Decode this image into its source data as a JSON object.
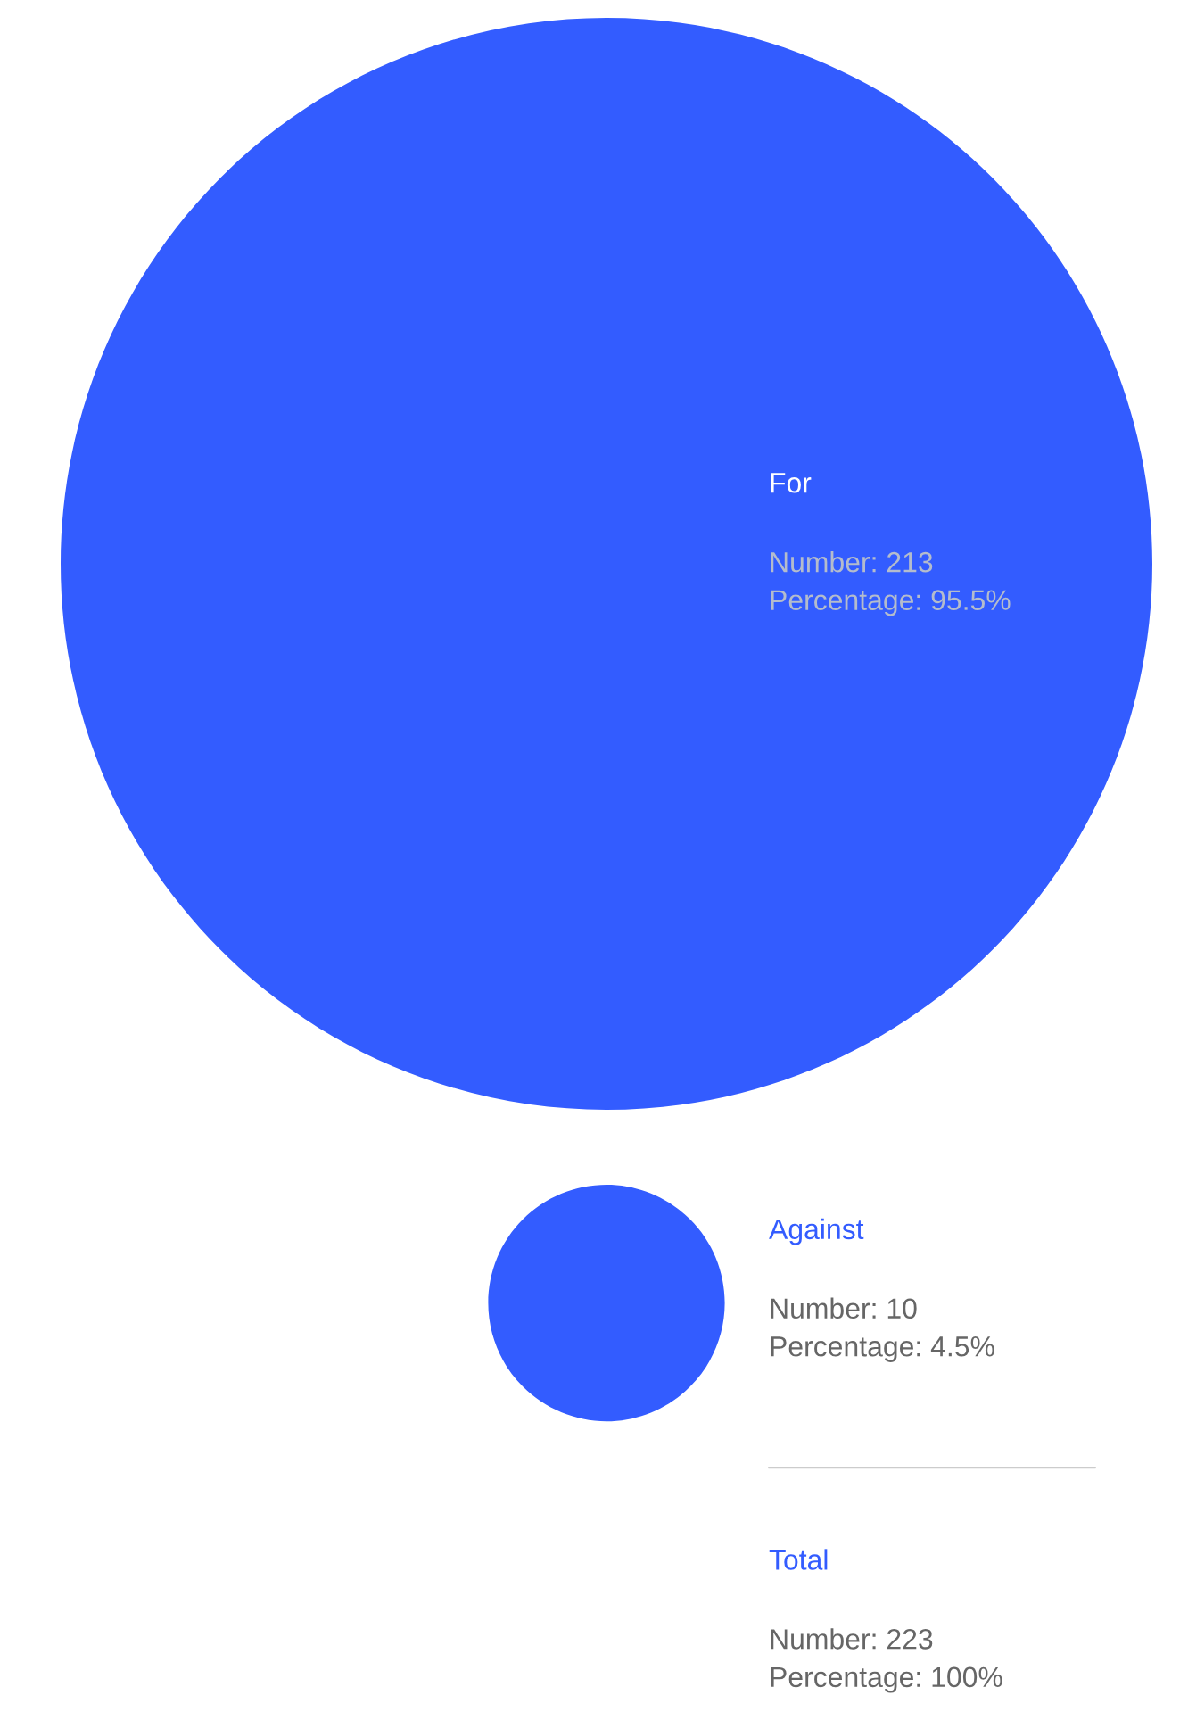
{
  "chart_data": {
    "type": "other",
    "categories": [
      "For",
      "Against"
    ],
    "values": [
      213,
      10
    ],
    "value_labels": [
      "Number: 213\nPercentage: 95.5%",
      "Number: 10\nPercentage: 4.5%"
    ],
    "color": "#335cff",
    "annotations": [
      "Total",
      "Number: 223\nPercentage: 100%"
    ]
  }
}
